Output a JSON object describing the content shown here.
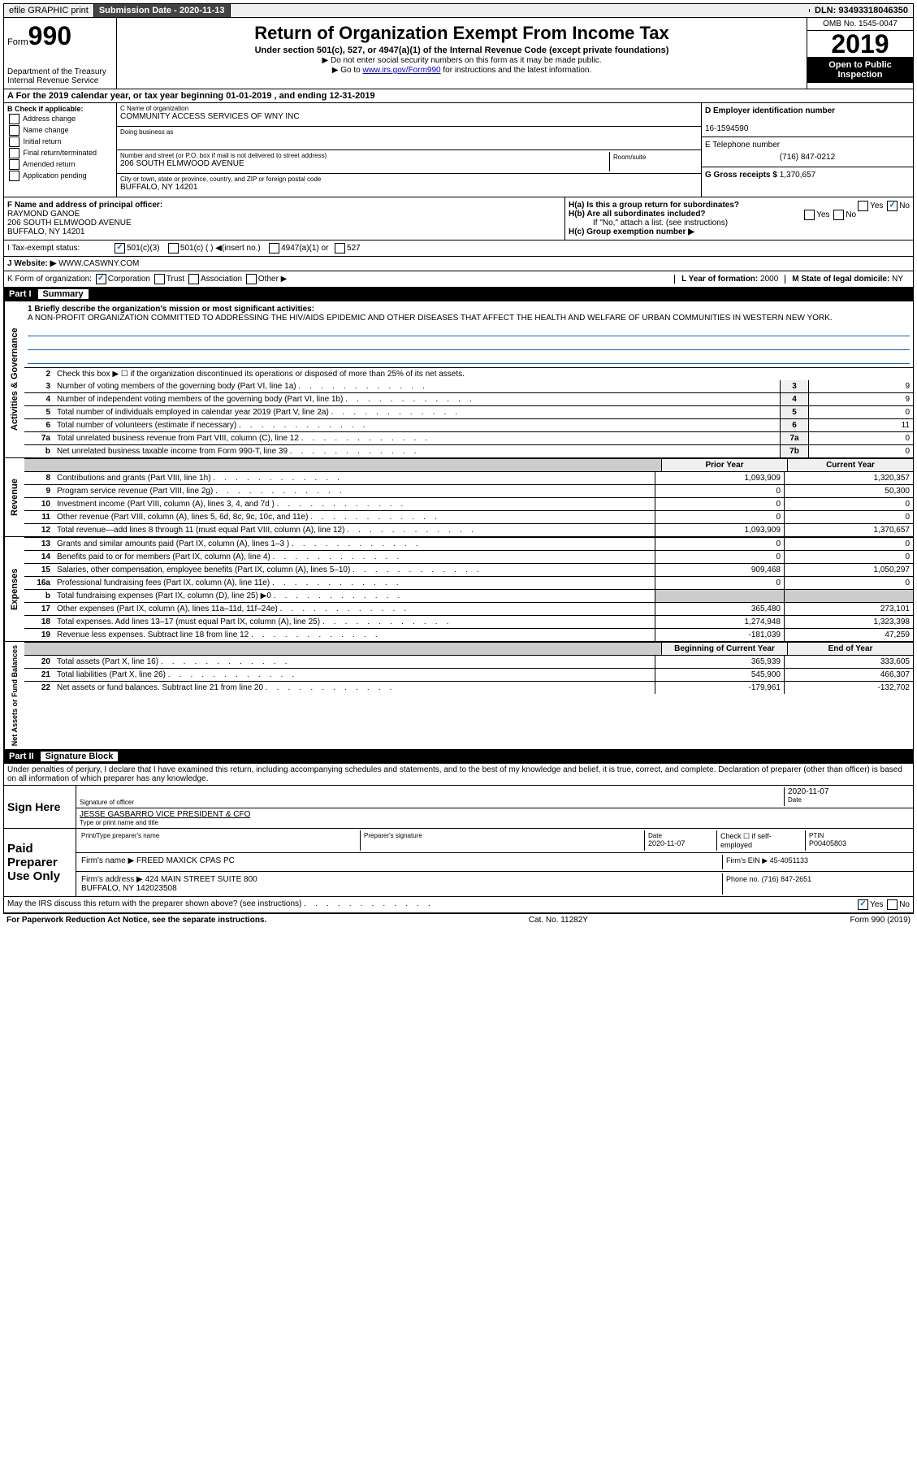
{
  "top": {
    "efile": "efile GRAPHIC print",
    "submission_label": "Submission Date - 2020-11-13",
    "dln": "DLN: 93493318046350"
  },
  "header": {
    "form_label": "Form",
    "form_number": "990",
    "dept": "Department of the Treasury\nInternal Revenue Service",
    "title": "Return of Organization Exempt From Income Tax",
    "subtitle": "Under section 501(c), 527, or 4947(a)(1) of the Internal Revenue Code (except private foundations)",
    "line1": "▶ Do not enter social security numbers on this form as it may be made public.",
    "line2_pre": "▶ Go to ",
    "line2_link": "www.irs.gov/Form990",
    "line2_post": " for instructions and the latest information.",
    "omb": "OMB No. 1545-0047",
    "year": "2019",
    "inspection": "Open to Public Inspection"
  },
  "period": "A For the 2019 calendar year, or tax year beginning 01-01-2019    , and ending 12-31-2019",
  "boxB": {
    "label": "B Check if applicable:",
    "opts": [
      "Address change",
      "Name change",
      "Initial return",
      "Final return/terminated",
      "Amended return",
      "Application pending"
    ]
  },
  "boxC": {
    "name_label": "C Name of organization",
    "name": "COMMUNITY ACCESS SERVICES OF WNY INC",
    "dba_label": "Doing business as",
    "dba": "",
    "addr_label": "Number and street (or P.O. box if mail is not delivered to street address)",
    "addr": "206 SOUTH ELMWOOD AVENUE",
    "room_label": "Room/suite",
    "city_label": "City or town, state or province, country, and ZIP or foreign postal code",
    "city": "BUFFALO, NY  14201"
  },
  "boxD": {
    "label": "D Employer identification number",
    "val": "16-1594590"
  },
  "boxE": {
    "label": "E Telephone number",
    "val": "(716) 847-0212"
  },
  "boxG": {
    "label": "G Gross receipts $",
    "val": "1,370,657"
  },
  "boxF": {
    "label": "F  Name and address of principal officer:",
    "name": "RAYMOND GANOE",
    "addr": "206 SOUTH ELMWOOD AVENUE\nBUFFALO, NY  14201"
  },
  "boxH": {
    "a": "H(a)  Is this a group return for subordinates?",
    "a_no": true,
    "b": "H(b)  Are all subordinates included?",
    "b_note": "If \"No,\" attach a list. (see instructions)",
    "c": "H(c)  Group exemption number ▶"
  },
  "taxexempt": {
    "label": "I   Tax-exempt status:",
    "c3": "501(c)(3)",
    "c": "501(c) (  ) ◀(insert no.)",
    "a1": "4947(a)(1) or",
    "s527": "527"
  },
  "website": {
    "label": "J   Website: ▶",
    "val": "WWW.CASWNY.COM"
  },
  "boxK": {
    "label": "K Form of organization:",
    "corp": "Corporation",
    "trust": "Trust",
    "assoc": "Association",
    "other": "Other ▶"
  },
  "boxL": {
    "label": "L Year of formation:",
    "val": "2000"
  },
  "boxM": {
    "label": "M State of legal domicile:",
    "val": "NY"
  },
  "part1": {
    "num": "Part I",
    "title": "Summary",
    "mission_label": "1  Briefly describe the organization's mission or most significant activities:",
    "mission": "A NON-PROFIT ORGANIZATION COMMITTED TO ADDRESSING THE HIV/AIDS EPIDEMIC AND OTHER DISEASES THAT AFFECT THE HEALTH AND WELFARE OF URBAN COMMUNITIES IN WESTERN NEW YORK.",
    "line2": "Check this box ▶ ☐  if the organization discontinued its operations or disposed of more than 25% of its net assets.",
    "gov_lines": [
      {
        "n": "3",
        "t": "Number of voting members of the governing body (Part VI, line 1a)",
        "b": "3",
        "v": "9"
      },
      {
        "n": "4",
        "t": "Number of independent voting members of the governing body (Part VI, line 1b)",
        "b": "4",
        "v": "9"
      },
      {
        "n": "5",
        "t": "Total number of individuals employed in calendar year 2019 (Part V, line 2a)",
        "b": "5",
        "v": "0"
      },
      {
        "n": "6",
        "t": "Total number of volunteers (estimate if necessary)",
        "b": "6",
        "v": "11"
      },
      {
        "n": "7a",
        "t": "Total unrelated business revenue from Part VIII, column (C), line 12",
        "b": "7a",
        "v": "0"
      },
      {
        "n": "b",
        "t": "Net unrelated business taxable income from Form 990-T, line 39",
        "b": "7b",
        "v": "0"
      }
    ],
    "col_prior": "Prior Year",
    "col_current": "Current Year",
    "revenue": [
      {
        "n": "8",
        "t": "Contributions and grants (Part VIII, line 1h)",
        "p": "1,093,909",
        "c": "1,320,357"
      },
      {
        "n": "9",
        "t": "Program service revenue (Part VIII, line 2g)",
        "p": "0",
        "c": "50,300"
      },
      {
        "n": "10",
        "t": "Investment income (Part VIII, column (A), lines 3, 4, and 7d )",
        "p": "0",
        "c": "0"
      },
      {
        "n": "11",
        "t": "Other revenue (Part VIII, column (A), lines 5, 6d, 8c, 9c, 10c, and 11e)",
        "p": "0",
        "c": "0"
      },
      {
        "n": "12",
        "t": "Total revenue—add lines 8 through 11 (must equal Part VIII, column (A), line 12)",
        "p": "1,093,909",
        "c": "1,370,657"
      }
    ],
    "expenses": [
      {
        "n": "13",
        "t": "Grants and similar amounts paid (Part IX, column (A), lines 1–3 )",
        "p": "0",
        "c": "0"
      },
      {
        "n": "14",
        "t": "Benefits paid to or for members (Part IX, column (A), line 4)",
        "p": "0",
        "c": "0"
      },
      {
        "n": "15",
        "t": "Salaries, other compensation, employee benefits (Part IX, column (A), lines 5–10)",
        "p": "909,468",
        "c": "1,050,297"
      },
      {
        "n": "16a",
        "t": "Professional fundraising fees (Part IX, column (A), line 11e)",
        "p": "0",
        "c": "0"
      },
      {
        "n": "b",
        "t": "Total fundraising expenses (Part IX, column (D), line 25) ▶0",
        "p": "",
        "c": "",
        "shaded": true
      },
      {
        "n": "17",
        "t": "Other expenses (Part IX, column (A), lines 11a–11d, 11f–24e)",
        "p": "365,480",
        "c": "273,101"
      },
      {
        "n": "18",
        "t": "Total expenses. Add lines 13–17 (must equal Part IX, column (A), line 25)",
        "p": "1,274,948",
        "c": "1,323,398"
      },
      {
        "n": "19",
        "t": "Revenue less expenses. Subtract line 18 from line 12",
        "p": "-181,039",
        "c": "47,259"
      }
    ],
    "col_begin": "Beginning of Current Year",
    "col_end": "End of Year",
    "netassets": [
      {
        "n": "20",
        "t": "Total assets (Part X, line 16)",
        "p": "365,939",
        "c": "333,605"
      },
      {
        "n": "21",
        "t": "Total liabilities (Part X, line 26)",
        "p": "545,900",
        "c": "466,307"
      },
      {
        "n": "22",
        "t": "Net assets or fund balances. Subtract line 21 from line 20",
        "p": "-179,961",
        "c": "-132,702"
      }
    ],
    "vtab_gov": "Activities & Governance",
    "vtab_rev": "Revenue",
    "vtab_exp": "Expenses",
    "vtab_net": "Net Assets or Fund Balances"
  },
  "part2": {
    "num": "Part II",
    "title": "Signature Block",
    "decl": "Under penalties of perjury, I declare that I have examined this return, including accompanying schedules and statements, and to the best of my knowledge and belief, it is true, correct, and complete. Declaration of preparer (other than officer) is based on all information of which preparer has any knowledge.",
    "sign_here": "Sign Here",
    "sig_officer_lbl": "Signature of officer",
    "sig_date": "2020-11-07",
    "date_lbl": "Date",
    "officer_name": "JESSE GASBARRO  VICE PRESIDENT & CFO",
    "name_lbl": "Type or print name and title",
    "paid": "Paid Preparer Use Only",
    "prep_name_lbl": "Print/Type preparer's name",
    "prep_sig_lbl": "Preparer's signature",
    "prep_date_lbl": "Date",
    "prep_date": "2020-11-07",
    "self_emp": "Check ☐ if self-employed",
    "ptin_lbl": "PTIN",
    "ptin": "P00405803",
    "firm_name_lbl": "Firm's name    ▶",
    "firm_name": "FREED MAXICK CPAS PC",
    "firm_ein_lbl": "Firm's EIN ▶",
    "firm_ein": "45-4051133",
    "firm_addr_lbl": "Firm's address ▶",
    "firm_addr": "424 MAIN STREET SUITE 800\nBUFFALO, NY  142023508",
    "firm_phone_lbl": "Phone no.",
    "firm_phone": "(716) 847-2651",
    "discuss": "May the IRS discuss this return with the preparer shown above? (see instructions)",
    "discuss_yes": true
  },
  "footer": {
    "left": "For Paperwork Reduction Act Notice, see the separate instructions.",
    "mid": "Cat. No. 11282Y",
    "right": "Form 990 (2019)"
  }
}
